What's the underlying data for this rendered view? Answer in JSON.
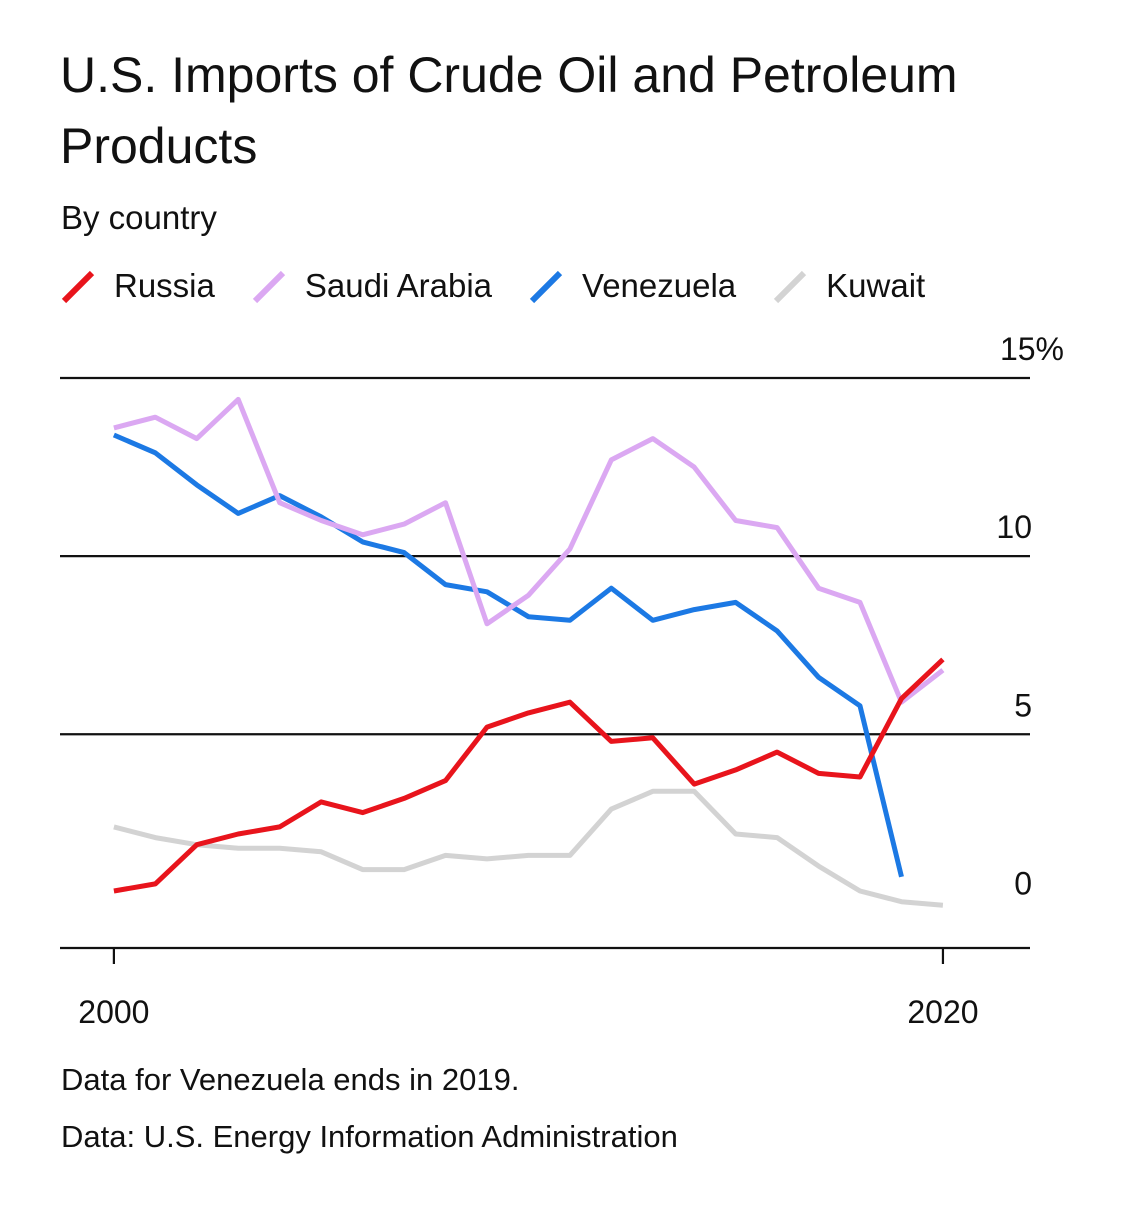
{
  "chart_data": {
    "type": "line",
    "title": "U.S. Imports of Crude Oil and Petroleum Products",
    "subtitle": "By country",
    "x": [
      2000,
      2001,
      2002,
      2003,
      2004,
      2005,
      2006,
      2007,
      2008,
      2009,
      2010,
      2011,
      2012,
      2013,
      2014,
      2015,
      2016,
      2017,
      2018,
      2019,
      2020
    ],
    "series": [
      {
        "name": "Russia",
        "color": "#e8141c",
        "values": [
          0.6,
          0.8,
          1.9,
          2.2,
          2.4,
          3.1,
          2.8,
          3.2,
          3.7,
          5.2,
          5.6,
          5.9,
          4.8,
          4.9,
          3.6,
          4.0,
          4.5,
          3.9,
          3.8,
          6.0,
          7.1
        ]
      },
      {
        "name": "Saudi Arabia",
        "color": "#dba8f2",
        "values": [
          13.6,
          13.9,
          13.3,
          14.4,
          11.5,
          11.0,
          10.6,
          10.9,
          11.5,
          8.1,
          8.9,
          10.2,
          12.7,
          13.3,
          12.5,
          11.0,
          10.8,
          9.1,
          8.7,
          5.9,
          6.8
        ]
      },
      {
        "name": "Venezuela",
        "color": "#1c79e4",
        "values": [
          13.4,
          12.9,
          12.0,
          11.2,
          11.7,
          11.1,
          10.4,
          10.1,
          9.2,
          9.0,
          8.3,
          8.2,
          9.1,
          8.2,
          8.5,
          8.7,
          7.9,
          6.6,
          5.8,
          1.0,
          null
        ]
      },
      {
        "name": "Kuwait",
        "color": "#d3d3d3",
        "values": [
          2.4,
          2.1,
          1.9,
          1.8,
          1.8,
          1.7,
          1.2,
          1.2,
          1.6,
          1.5,
          1.6,
          1.6,
          2.9,
          3.4,
          3.4,
          2.2,
          2.1,
          1.3,
          0.6,
          0.3,
          0.2
        ]
      }
    ],
    "y_ticks": [
      0,
      5,
      10,
      15
    ],
    "y_tick_labels": [
      "0",
      "5",
      "10",
      "15%"
    ],
    "x_tick_values": [
      2000,
      2020
    ],
    "x_tick_labels": [
      "2000",
      "2020"
    ],
    "ylim": [
      -1,
      15
    ],
    "xlim": [
      1998.7,
      2022.1
    ],
    "grid": true,
    "legend_position": "top"
  },
  "note": "Data for Venezuela ends in 2019.",
  "source": "Data: U.S. Energy Information Administration"
}
